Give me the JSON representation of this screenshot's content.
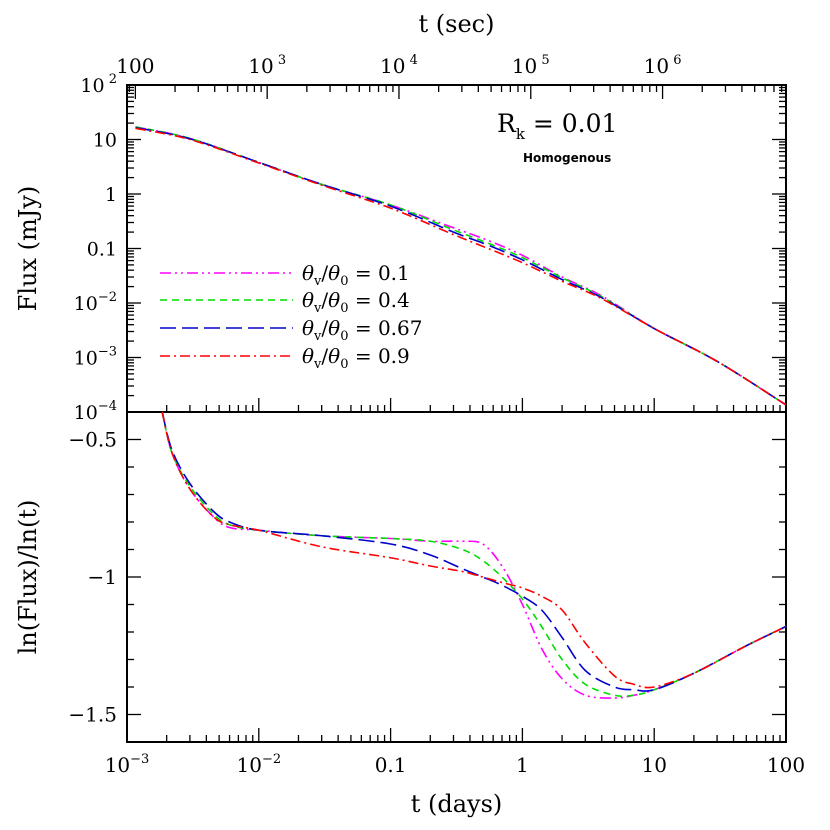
{
  "chart_data": {
    "type": "line",
    "x_top": {
      "label": "t (sec)",
      "scale": "log",
      "ticks": [
        {
          "value": 100,
          "label": "100"
        },
        {
          "value": 1000,
          "label": "10 3"
        },
        {
          "value": 10000,
          "label": "10 4"
        },
        {
          "value": 100000,
          "label": "10 5"
        },
        {
          "value": 1000000,
          "label": "10 6"
        }
      ]
    },
    "x_bottom": {
      "label": "t (days)",
      "scale": "log",
      "range": [
        0.001,
        100
      ],
      "ticks": [
        {
          "value": 0.001,
          "label": "10-3"
        },
        {
          "value": 0.01,
          "label": "10-2"
        },
        {
          "value": 0.1,
          "label": "0.1"
        },
        {
          "value": 1,
          "label": "1"
        },
        {
          "value": 10,
          "label": "10"
        },
        {
          "value": 100,
          "label": "100"
        }
      ]
    },
    "panels": [
      {
        "id": "flux",
        "ylabel": "Flux (mJy)",
        "yscale": "log",
        "ylim": [
          0.0001,
          100
        ],
        "yticks": [
          {
            "value": 100,
            "label": "10 2"
          },
          {
            "value": 10,
            "label": "10"
          },
          {
            "value": 1,
            "label": "1"
          },
          {
            "value": 0.1,
            "label": "0.1"
          },
          {
            "value": 0.01,
            "label": "10-2"
          },
          {
            "value": 0.001,
            "label": "10-3"
          },
          {
            "value": 0.0001,
            "label": "10-4"
          }
        ],
        "annotations": [
          "R_k = 0.01",
          "Homogenous"
        ],
        "series": [
          {
            "name": "θv/θ0 = 0.1",
            "color": "#ff00ff",
            "dash": "dash-dot-dot",
            "x": [
              0.00116,
              0.003,
              0.01,
              0.03,
              0.1,
              0.3,
              0.55,
              1,
              2,
              4,
              10,
              30,
              100
            ],
            "y": [
              17,
              10.5,
              3.8,
              1.5,
              0.63,
              0.24,
              0.14,
              0.075,
              0.03,
              0.0135,
              0.0034,
              0.00085,
              0.000135
            ]
          },
          {
            "name": "θv/θ0 = 0.4",
            "color": "#00dd00",
            "dash": "short-dash",
            "x": [
              0.00116,
              0.003,
              0.01,
              0.03,
              0.1,
              0.3,
              0.55,
              1,
              2,
              4,
              10,
              30,
              100
            ],
            "y": [
              17,
              10.5,
              3.8,
              1.5,
              0.63,
              0.22,
              0.125,
              0.068,
              0.029,
              0.013,
              0.0034,
              0.00085,
              0.000135
            ]
          },
          {
            "name": "θv/θ0 = 0.67",
            "color": "#0000cc",
            "dash": "long-dash",
            "x": [
              0.00116,
              0.003,
              0.01,
              0.03,
              0.1,
              0.3,
              0.55,
              1,
              2,
              4,
              10,
              30,
              100
            ],
            "y": [
              16.5,
              10.3,
              3.8,
              1.5,
              0.6,
              0.2,
              0.115,
              0.062,
              0.027,
              0.0125,
              0.0034,
              0.00085,
              0.000135
            ]
          },
          {
            "name": "θv/θ0 = 0.9",
            "color": "#ff0000",
            "dash": "dash-dot",
            "x": [
              0.00116,
              0.003,
              0.01,
              0.03,
              0.1,
              0.3,
              0.55,
              1,
              2,
              4,
              10,
              30,
              100
            ],
            "y": [
              16,
              10,
              3.7,
              1.45,
              0.55,
              0.18,
              0.1,
              0.055,
              0.025,
              0.012,
              0.0034,
              0.00085,
              0.000135
            ]
          }
        ]
      },
      {
        "id": "slope",
        "ylabel": "ln(Flux)/ln(t)",
        "yscale": "linear",
        "ylim": [
          -1.6,
          -0.4
        ],
        "yticks": [
          {
            "value": -0.5,
            "label": "−0.5"
          },
          {
            "value": -1,
            "label": "−1"
          },
          {
            "value": -1.5,
            "label": "−1.5"
          }
        ],
        "series": [
          {
            "name": "θv/θ0 = 0.1",
            "color": "#ff00ff",
            "dash": "dash-dot-dot",
            "x": [
              0.00185,
              0.0022,
              0.003,
              0.0045,
              0.006,
              0.01,
              0.03,
              0.1,
              0.2,
              0.35,
              0.5,
              0.7,
              1.0,
              1.4,
              2,
              3,
              5,
              7,
              10,
              20,
              50,
              100
            ],
            "y": [
              -0.38,
              -0.55,
              -0.68,
              -0.78,
              -0.82,
              -0.83,
              -0.85,
              -0.86,
              -0.87,
              -0.87,
              -0.88,
              -0.96,
              -1.1,
              -1.26,
              -1.37,
              -1.43,
              -1.44,
              -1.43,
              -1.41,
              -1.35,
              -1.25,
              -1.18
            ]
          },
          {
            "name": "θv/θ0 = 0.4",
            "color": "#00dd00",
            "dash": "short-dash",
            "x": [
              0.00185,
              0.0022,
              0.003,
              0.0045,
              0.006,
              0.01,
              0.03,
              0.1,
              0.2,
              0.35,
              0.5,
              0.7,
              1.0,
              1.4,
              2,
              3,
              5,
              7,
              10,
              20,
              50,
              100
            ],
            "y": [
              -0.38,
              -0.55,
              -0.67,
              -0.77,
              -0.81,
              -0.83,
              -0.85,
              -0.86,
              -0.87,
              -0.9,
              -0.94,
              -1.0,
              -1.08,
              -1.18,
              -1.3,
              -1.39,
              -1.43,
              -1.43,
              -1.41,
              -1.35,
              -1.25,
              -1.18
            ]
          },
          {
            "name": "θv/θ0 = 0.67",
            "color": "#0000cc",
            "dash": "long-dash",
            "x": [
              0.00185,
              0.0022,
              0.003,
              0.0045,
              0.006,
              0.01,
              0.03,
              0.1,
              0.2,
              0.35,
              0.5,
              0.7,
              1.0,
              1.4,
              2,
              3,
              5,
              7,
              10,
              20,
              50,
              100
            ],
            "y": [
              -0.38,
              -0.54,
              -0.66,
              -0.76,
              -0.8,
              -0.83,
              -0.85,
              -0.88,
              -0.92,
              -0.97,
              -1.0,
              -1.03,
              -1.07,
              -1.12,
              -1.22,
              -1.34,
              -1.4,
              -1.41,
              -1.41,
              -1.35,
              -1.25,
              -1.18
            ]
          },
          {
            "name": "θv/θ0 = 0.9",
            "color": "#ff0000",
            "dash": "dash-dot",
            "x": [
              0.00185,
              0.0022,
              0.003,
              0.0045,
              0.006,
              0.01,
              0.03,
              0.1,
              0.2,
              0.35,
              0.5,
              0.7,
              1.0,
              1.4,
              2,
              3,
              5,
              7,
              10,
              20,
              50,
              100
            ],
            "y": [
              -0.38,
              -0.55,
              -0.68,
              -0.78,
              -0.81,
              -0.83,
              -0.89,
              -0.93,
              -0.96,
              -0.98,
              -1.0,
              -1.02,
              -1.04,
              -1.07,
              -1.12,
              -1.24,
              -1.36,
              -1.39,
              -1.4,
              -1.35,
              -1.25,
              -1.18
            ]
          }
        ]
      }
    ]
  }
}
